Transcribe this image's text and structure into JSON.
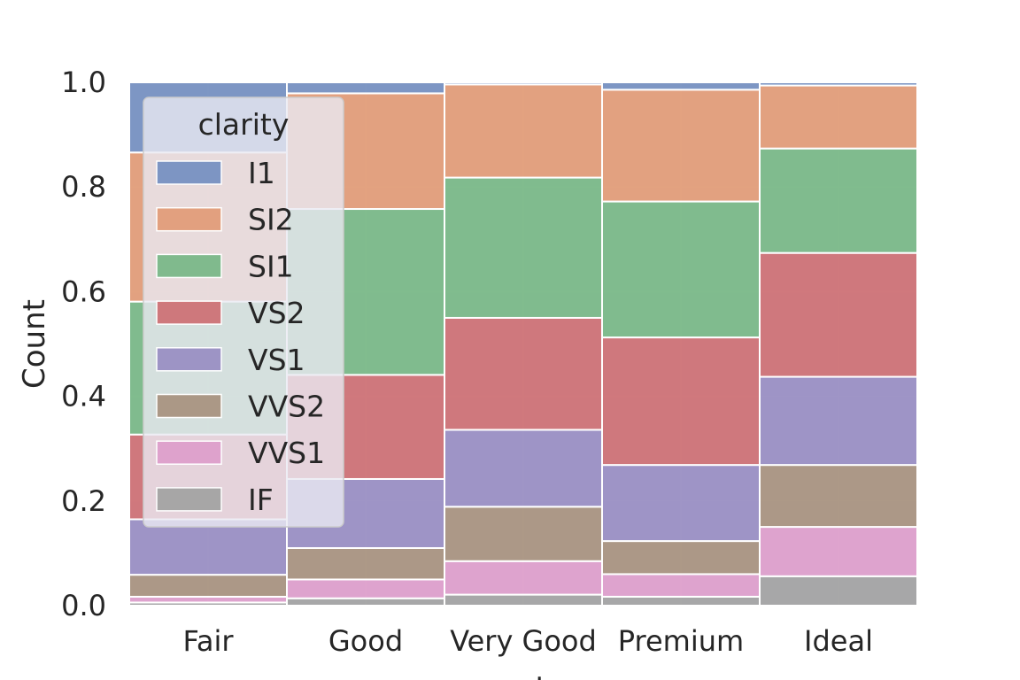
{
  "chart_data": {
    "type": "bar",
    "stacked": true,
    "normalized": true,
    "categories": [
      "Fair",
      "Good",
      "Very Good",
      "Premium",
      "Ideal"
    ],
    "xlabel": "cut",
    "ylabel": "Count",
    "ylim": [
      0,
      1
    ],
    "yticks": [
      "0.0",
      "0.2",
      "0.4",
      "0.6",
      "0.8",
      "1.0"
    ],
    "grid": true,
    "legend": {
      "title": "clarity",
      "position": "upper-left"
    },
    "series": [
      {
        "name": "IF",
        "color": "#a3a3a3",
        "values": [
          0.006,
          0.014,
          0.021,
          0.017,
          0.056
        ]
      },
      {
        "name": "VVS1",
        "color": "#dd9fcb",
        "values": [
          0.011,
          0.036,
          0.064,
          0.043,
          0.094
        ]
      },
      {
        "name": "VVS2",
        "color": "#a99481",
        "values": [
          0.042,
          0.06,
          0.104,
          0.063,
          0.118
        ]
      },
      {
        "name": "VS1",
        "color": "#9a8fc3",
        "values": [
          0.106,
          0.132,
          0.147,
          0.145,
          0.168
        ]
      },
      {
        "name": "VS2",
        "color": "#cd7276",
        "values": [
          0.162,
          0.199,
          0.214,
          0.243,
          0.236
        ]
      },
      {
        "name": "SI1",
        "color": "#7ab888",
        "values": [
          0.254,
          0.317,
          0.268,
          0.259,
          0.199
        ]
      },
      {
        "name": "SI2",
        "color": "#e19d79",
        "values": [
          0.285,
          0.221,
          0.178,
          0.213,
          0.12
        ]
      },
      {
        "name": "I1",
        "color": "#7791c1",
        "values": [
          0.134,
          0.021,
          0.004,
          0.014,
          0.006
        ]
      }
    ],
    "legend_order": [
      "I1",
      "SI2",
      "SI1",
      "VS2",
      "VS1",
      "VVS2",
      "VVS1",
      "IF"
    ]
  },
  "colors": {
    "background": "#ffffff",
    "plot_background": "#eaeaf2",
    "grid": "#ffffff",
    "bar_edge": "#ffffff",
    "legend_face": "#eaeaf2",
    "legend_edge": "#cccccc"
  }
}
